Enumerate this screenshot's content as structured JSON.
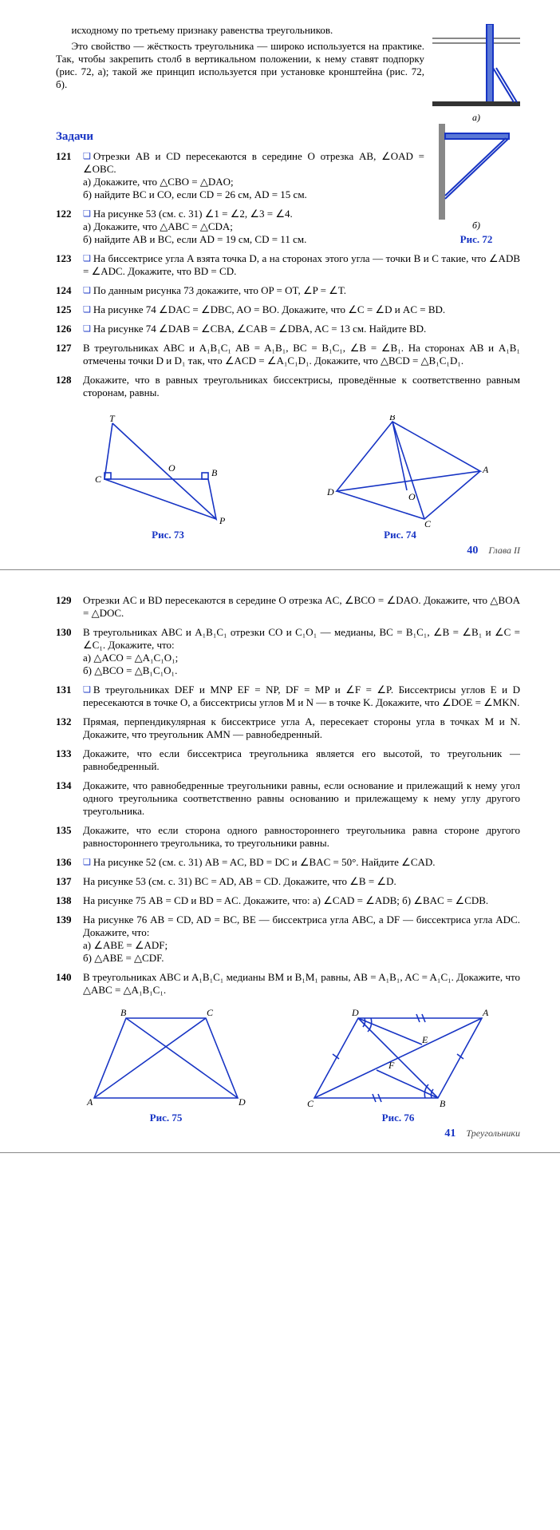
{
  "page40": {
    "intro": [
      "исходному по третьему признаку равенства треугольников.",
      "Это свойство — жёсткость треугольника — широко используется на практике. Так, чтобы закрепить столб в вертикальном положении, к нему ставят подпорку (рис. 72, а); такой же принцип используется при установке кронштейна (рис. 72, б)."
    ],
    "section": "Задачи",
    "problems": [
      {
        "n": "121",
        "icon": true,
        "text": "Отрезки AB и CD пересекаются в середине O отрезка AB, ∠OAD = ∠OBC.\nа) Докажите, что △CBO = △DAO;\nб) найдите BC и CO, если CD = 26 см, AD = 15 см."
      },
      {
        "n": "122",
        "icon": true,
        "text": "На рисунке 53 (см. с. 31) ∠1 = ∠2, ∠3 = ∠4.\nа) Докажите, что △ABC = △CDA;\nб) найдите AB и BC, если AD = 19 см, CD = 11 см."
      },
      {
        "n": "123",
        "icon": true,
        "text": "На биссектрисе угла A взята точка D, а на сторонах этого угла — точки B и C такие, что ∠ADB = ∠ADC. Докажите, что BD = CD."
      },
      {
        "n": "124",
        "icon": true,
        "text": "По данным рисунка 73 докажите, что OP = OT, ∠P = ∠T."
      },
      {
        "n": "125",
        "icon": true,
        "text": "На рисунке 74 ∠DAC = ∠DBC, AO = BO. Докажите, что ∠C = ∠D и AC = BD."
      },
      {
        "n": "126",
        "icon": true,
        "text": "На рисунке 74 ∠DAB = ∠CBA, ∠CAB = ∠DBA, AC = 13 см. Найдите BD."
      },
      {
        "n": "127",
        "icon": false,
        "text": "В треугольниках ABC и A₁B₁C₁ AB = A₁B₁, BC = B₁C₁, ∠B = ∠B₁. На сторонах AB и A₁B₁ отмечены точки D и D₁ так, что ∠ACD = ∠A₁C₁D₁. Докажите, что △BCD = △B₁C₁D₁."
      },
      {
        "n": "128",
        "icon": false,
        "text": "Докажите, что в равных треугольниках биссектрисы, проведённые к соответственно равным сторонам, равны."
      }
    ],
    "fig72": {
      "label": "Рис. 72",
      "a": "а)",
      "b": "б)"
    },
    "fig73": {
      "label": "Рис. 73",
      "color": "#1734c4"
    },
    "fig74": {
      "label": "Рис. 74",
      "color": "#1734c4"
    },
    "footer": {
      "page": "40",
      "chapter": "Глава II"
    }
  },
  "page41": {
    "problems": [
      {
        "n": "129",
        "icon": false,
        "text": "Отрезки AC и BD пересекаются в середине O отрезка AC, ∠BCO = ∠DAO. Докажите, что △BOA = △DOC."
      },
      {
        "n": "130",
        "icon": false,
        "text": "В треугольниках ABC и A₁B₁C₁ отрезки CO и C₁O₁ — медианы, BC = B₁C₁, ∠B = ∠B₁ и ∠C = ∠C₁. Докажите, что:\nа) △ACO = △A₁C₁O₁;\nб) △BCO = △B₁C₁O₁."
      },
      {
        "n": "131",
        "icon": true,
        "text": "В треугольниках DEF и MNP EF = NP, DF = MP и ∠F = ∠P. Биссектрисы углов E и D пересекаются в точке O, а биссектрисы углов M и N — в точке K. Докажите, что ∠DOE = ∠MKN."
      },
      {
        "n": "132",
        "icon": false,
        "text": "Прямая, перпендикулярная к биссектрисе угла A, пересекает стороны угла в точках M и N. Докажите, что треугольник AMN — равнобедренный."
      },
      {
        "n": "133",
        "icon": false,
        "text": "Докажите, что если биссектриса треугольника является его высотой, то треугольник — равнобедренный."
      },
      {
        "n": "134",
        "icon": false,
        "text": "Докажите, что равнобедренные треугольники равны, если основание и прилежащий к нему угол одного треугольника соответственно равны основанию и прилежащему к нему углу другого треугольника."
      },
      {
        "n": "135",
        "icon": false,
        "text": "Докажите, что если сторона одного равностороннего треугольника равна стороне другого равностороннего треугольника, то треугольники равны."
      },
      {
        "n": "136",
        "icon": true,
        "text": "На рисунке 52 (см. с. 31) AB = AC, BD = DC и ∠BAC = 50°. Найдите ∠CAD."
      },
      {
        "n": "137",
        "icon": false,
        "text": "На рисунке 53 (см. с. 31) BC = AD, AB = CD. Докажите, что ∠B = ∠D."
      },
      {
        "n": "138",
        "icon": false,
        "text": "На рисунке 75 AB = CD и BD = AC. Докажите, что: а) ∠CAD = ∠ADB; б) ∠BAC = ∠CDB."
      },
      {
        "n": "139",
        "icon": false,
        "text": "На рисунке 76 AB = CD, AD = BC, BE — биссектриса угла ABC, а DF — биссектриса угла ADC. Докажите, что:\nа) ∠ABE = ∠ADF;\nб) △ABE = △CDF."
      },
      {
        "n": "140",
        "icon": false,
        "text": "В треугольниках ABC и A₁B₁C₁ медианы BM и B₁M₁ равны, AB = A₁B₁, AC = A₁C₁. Докажите, что △ABC = △A₁B₁C₁."
      }
    ],
    "fig75": {
      "label": "Рис. 75",
      "color": "#1734c4"
    },
    "fig76": {
      "label": "Рис. 76",
      "color": "#1734c4"
    },
    "footer": {
      "page": "41",
      "chapter": "Треугольники"
    }
  },
  "style": {
    "accent": "#1734c4",
    "stroke": "#1734c4",
    "stroke_width": 1.6
  }
}
